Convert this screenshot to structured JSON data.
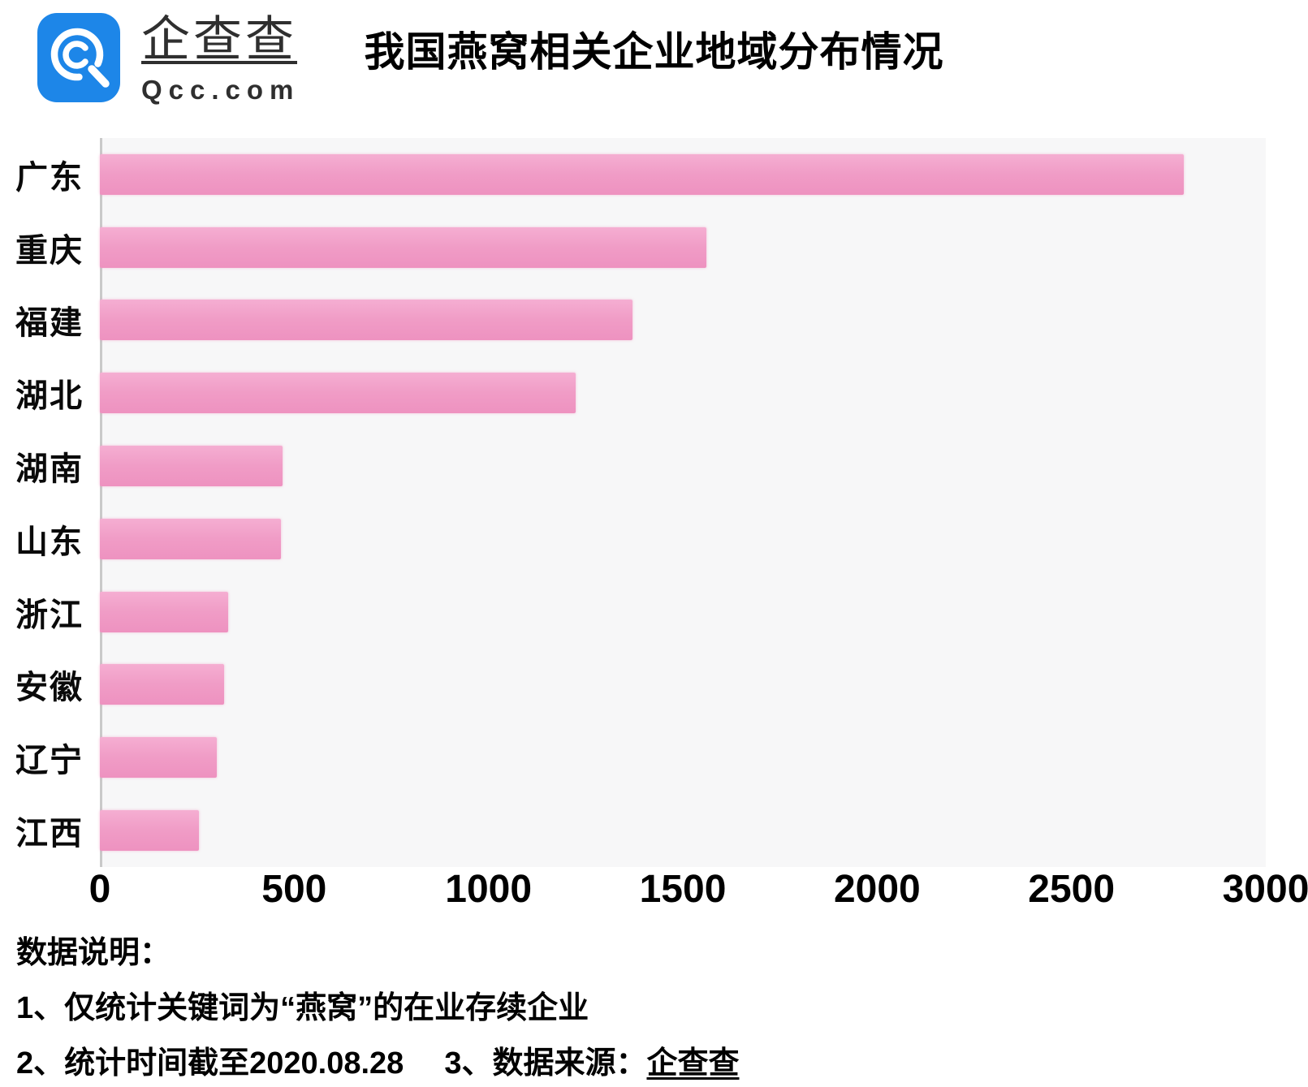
{
  "header": {
    "brand_cn": "企查查",
    "brand_domain": "Qcc.com",
    "brand_color": "#1d86e8",
    "title": "我国燕窝相关企业地域分布情况"
  },
  "chart_data": {
    "type": "bar",
    "orientation": "horizontal",
    "title": "我国燕窝相关企业地域分布情况",
    "categories": [
      "广东",
      "重庆",
      "福建",
      "湖北",
      "湖南",
      "山东",
      "浙江",
      "安徽",
      "辽宁",
      "江西"
    ],
    "values": [
      2790,
      1560,
      1370,
      1225,
      470,
      465,
      330,
      320,
      300,
      255
    ],
    "xlim": [
      0,
      3000
    ],
    "xticks": [
      "0",
      "500",
      "1000",
      "1500",
      "2000",
      "2500",
      "3000"
    ],
    "bar_color": "#f09cc6",
    "plot_background": "#f7f7f8",
    "grid": false,
    "legend": false
  },
  "footnotes": {
    "heading": "数据说明：",
    "note1": "1、仅统计关键词为“燕窝”的在业存续企业",
    "note2": "2、统计时间截至2020.08.28",
    "note3_label": "3、数据来源：",
    "note3_brand": "企查查"
  }
}
